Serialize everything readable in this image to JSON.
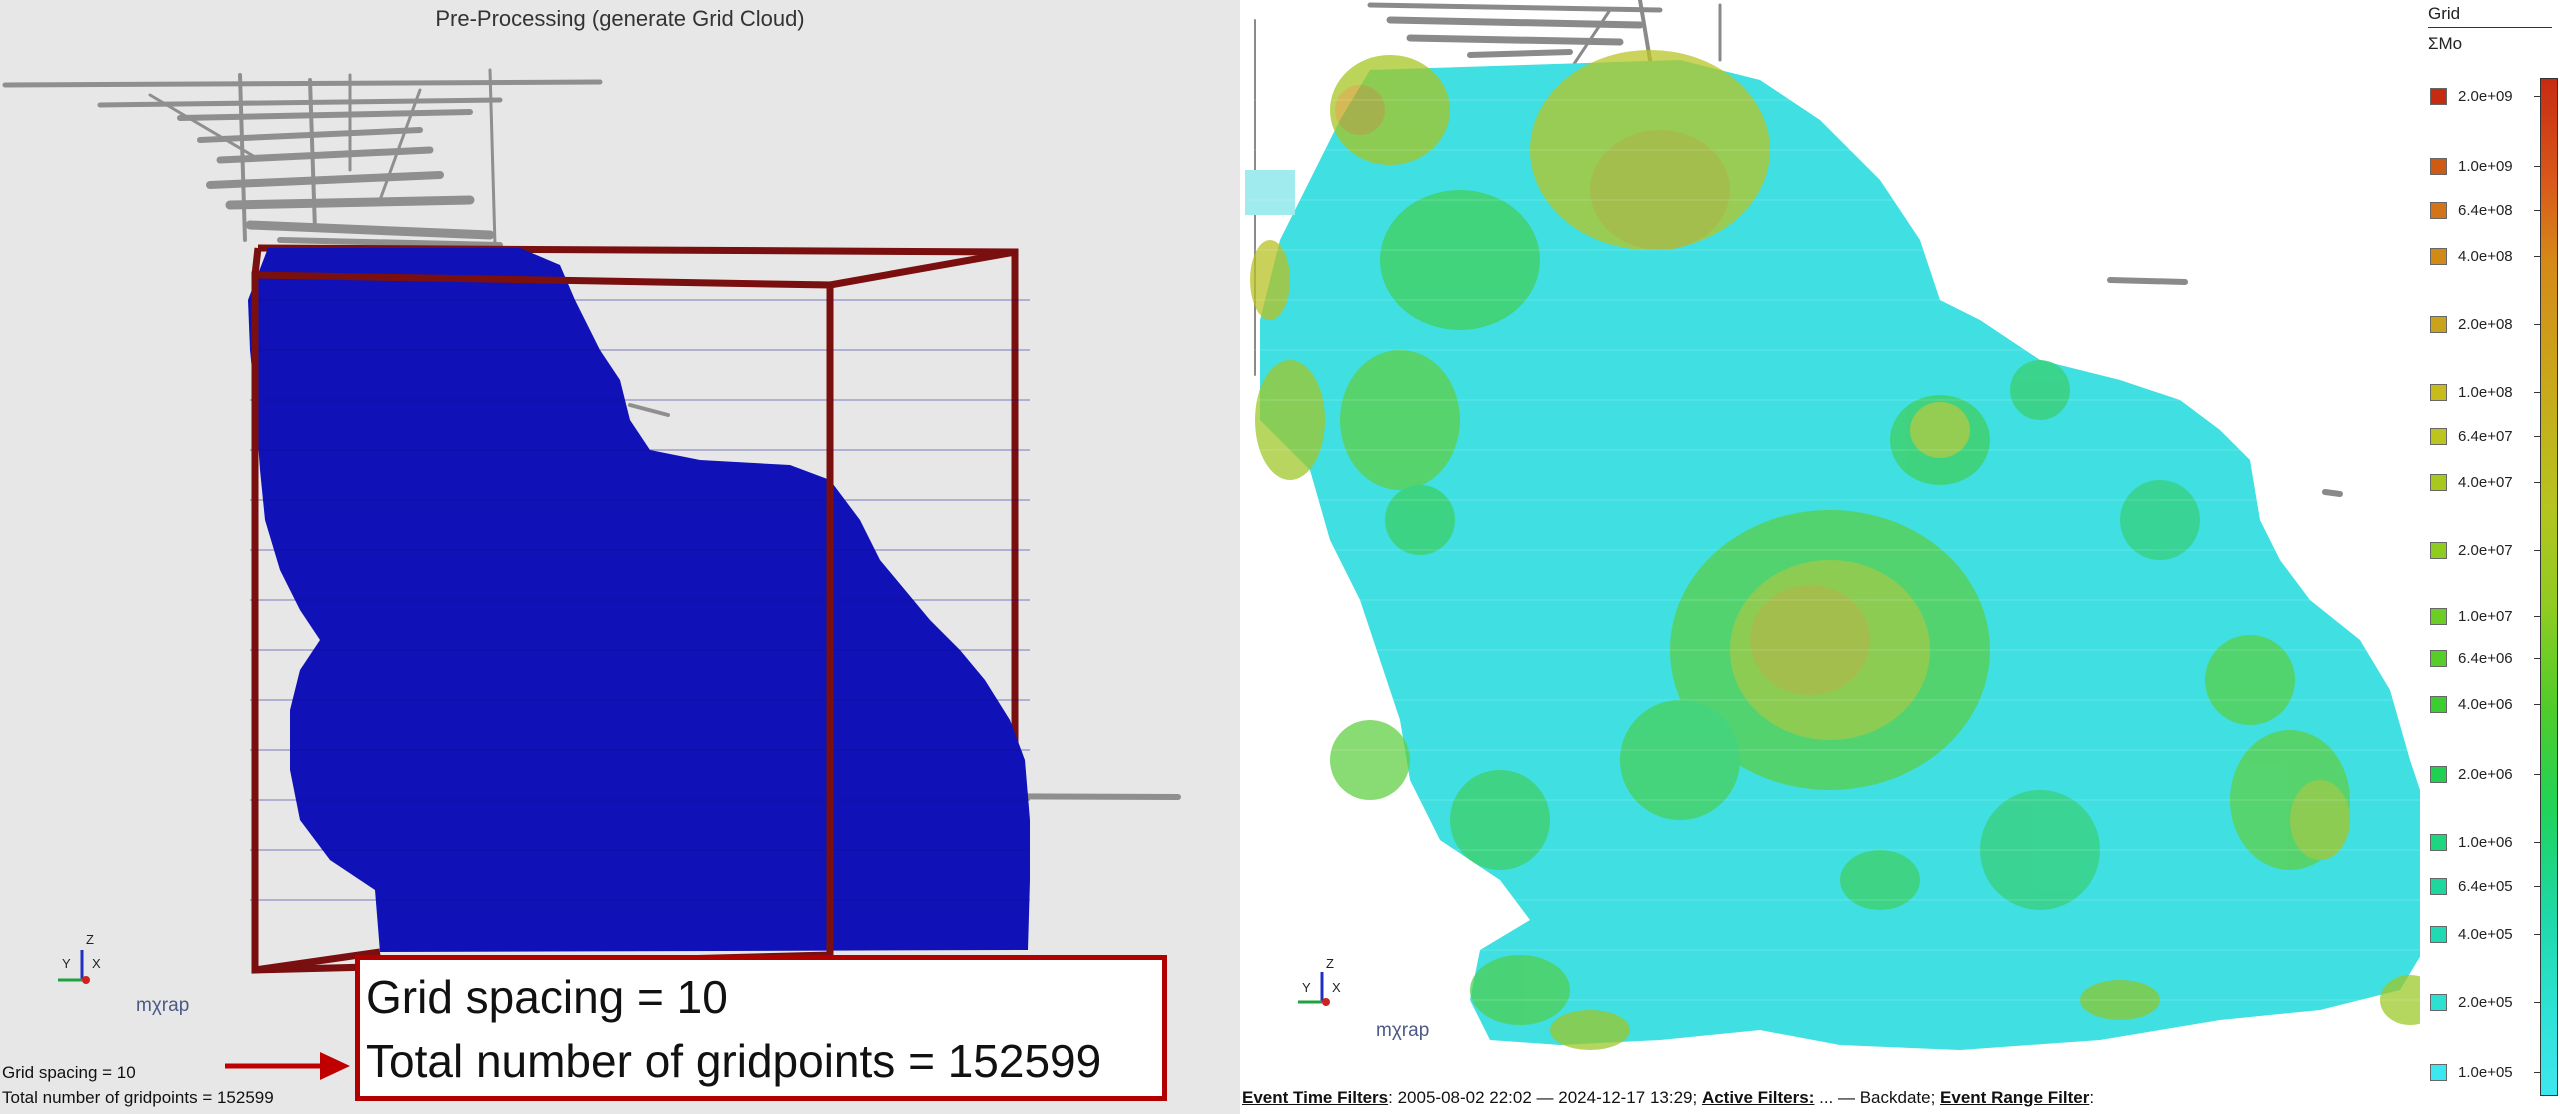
{
  "left": {
    "title": "Pre-Processing (generate Grid Cloud)",
    "callout": {
      "line1": "Grid spacing = 10",
      "line2": "Total number of gridpoints = 152599"
    },
    "status_line1": "Grid spacing = 10",
    "status_line2": "Total number of gridpoints = 152599",
    "brand": "mχrap",
    "axes": {
      "z": "Z",
      "y": "Y",
      "x": "X"
    },
    "colors": {
      "background": "#e7e7e7",
      "grid_cloud": "#1111b8",
      "bounding_box": "#7a0f0f",
      "callout_border": "#b00000"
    }
  },
  "right": {
    "brand": "mχrap",
    "axes": {
      "z": "Z",
      "y": "Y",
      "x": "X"
    }
  },
  "legend": {
    "title": "Grid",
    "subtitle": "ΣMo",
    "entries": [
      {
        "label": "2.0e+09",
        "color": "#c62b12"
      },
      {
        "label": "1.0e+09",
        "color": "#cf5a14"
      },
      {
        "label": "6.4e+08",
        "color": "#d3741a"
      },
      {
        "label": "4.0e+08",
        "color": "#d28a17"
      },
      {
        "label": "2.0e+08",
        "color": "#c9a31a"
      },
      {
        "label": "1.0e+08",
        "color": "#c8bc1c"
      },
      {
        "label": "6.4e+07",
        "color": "#bcc51e"
      },
      {
        "label": "4.0e+07",
        "color": "#a8c81e"
      },
      {
        "label": "2.0e+07",
        "color": "#8fcc22"
      },
      {
        "label": "1.0e+07",
        "color": "#6ccd26"
      },
      {
        "label": "6.4e+06",
        "color": "#57cd2a"
      },
      {
        "label": "4.0e+06",
        "color": "#3ccd30"
      },
      {
        "label": "2.0e+06",
        "color": "#20d052"
      },
      {
        "label": "1.0e+06",
        "color": "#1ed580"
      },
      {
        "label": "6.4e+05",
        "color": "#1ed79c"
      },
      {
        "label": "4.0e+05",
        "color": "#20dab6"
      },
      {
        "label": "2.0e+05",
        "color": "#2ee0d2"
      },
      {
        "label": "1.0e+05",
        "color": "#3ee7ef"
      }
    ]
  },
  "footer": {
    "event_time_label": "Event Time Filters",
    "event_time_value": ": 2005-08-02 22:02 — 2024-12-17 13:29; ",
    "active_label": "Active Filters:",
    "active_value": " ... — Backdate; ",
    "range_label": "Event Range Filter",
    "range_value": ":"
  }
}
